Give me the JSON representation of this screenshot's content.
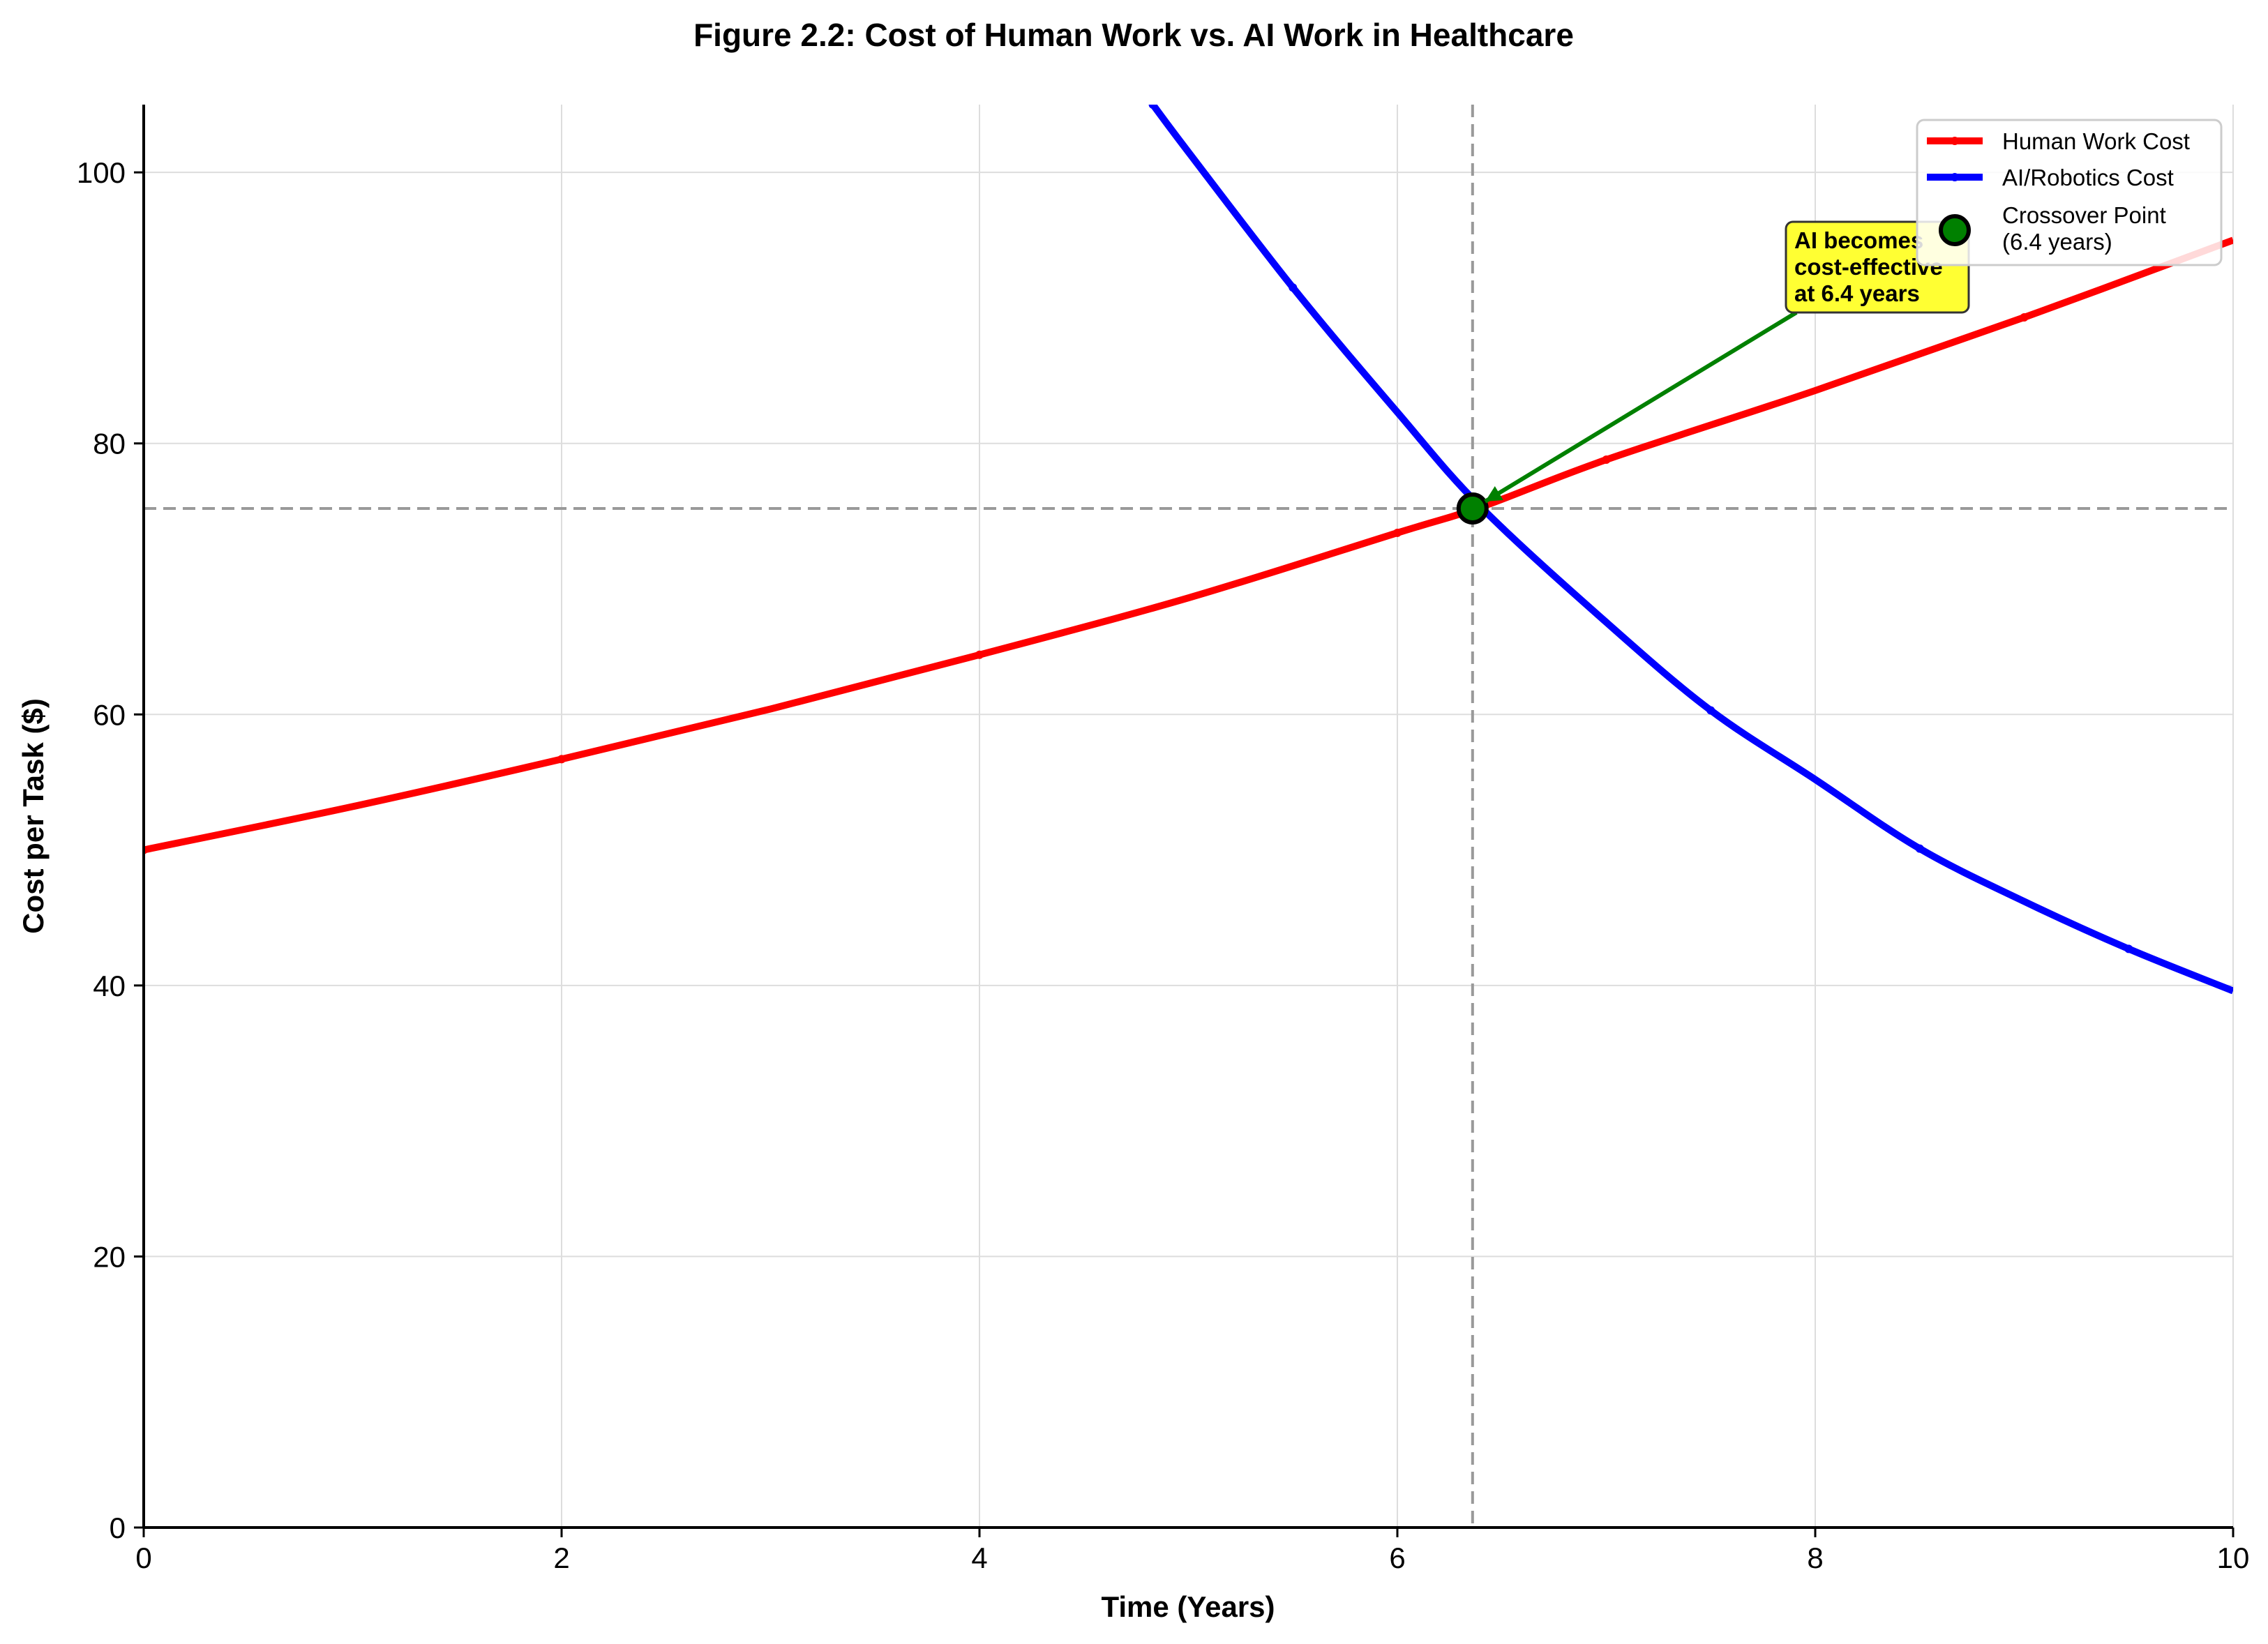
{
  "chart_data": {
    "type": "line",
    "title": "Figure 2.2: Cost of Human Work vs. AI Work in Healthcare",
    "xlabel": "Time (Years)",
    "ylabel": "Cost per Task ($)",
    "xlim": [
      0,
      10
    ],
    "ylim": [
      0,
      105
    ],
    "xticks": [
      0,
      2,
      4,
      6,
      8,
      10
    ],
    "yticks": [
      0,
      20,
      40,
      60,
      80,
      100
    ],
    "grid": true,
    "legend_position": "top-right",
    "series": [
      {
        "name": "Human Work Cost",
        "color": "#ff0000",
        "x": [
          0,
          1,
          2,
          3,
          4,
          5,
          6,
          6.4,
          7,
          8,
          9,
          10
        ],
        "y": [
          50,
          53.2,
          56.7,
          60.4,
          64.4,
          68.6,
          73.4,
          75.3,
          78.8,
          83.9,
          89.3,
          95.0
        ]
      },
      {
        "name": "AI/Robotics Cost",
        "color": "#0000ff",
        "x": [
          4.83,
          5,
          5.5,
          6,
          6.4,
          7,
          7.5,
          8,
          8.5,
          9,
          9.5,
          10
        ],
        "y": [
          105,
          101.5,
          91.5,
          82.3,
          75.3,
          66.8,
          60.3,
          55.2,
          50.1,
          46.2,
          42.7,
          39.6
        ]
      }
    ],
    "crossover": {
      "name": "Crossover Point\n(6.4 years)",
      "x": 6.36,
      "y": 75.2,
      "color": "#008000"
    },
    "annotation": {
      "text": [
        "AI becomes",
        "cost-effective",
        "at 6.4 years"
      ],
      "arrow_color": "#008000",
      "box_color": "#ffff33"
    }
  }
}
